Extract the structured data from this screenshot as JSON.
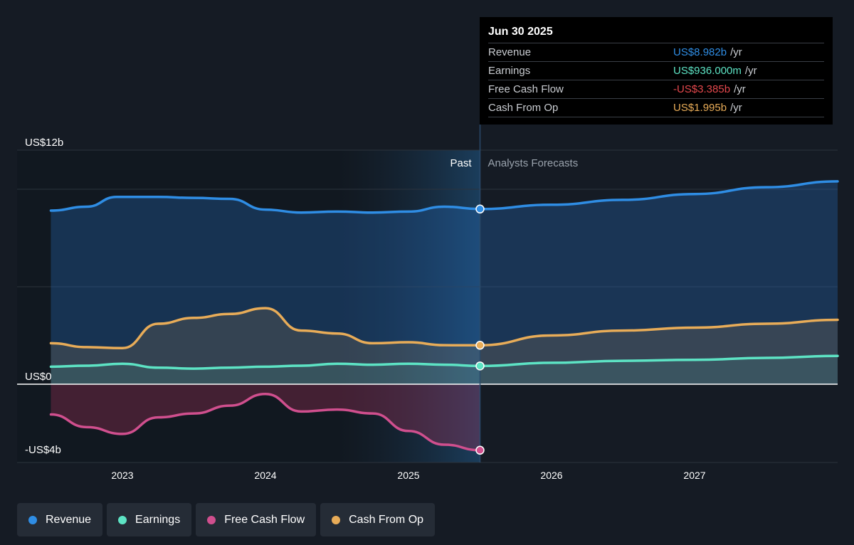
{
  "chart_data": {
    "type": "area",
    "y_axis": {
      "ticks": [
        {
          "value": 12,
          "label": "US$12b"
        },
        {
          "value": 0,
          "label": "US$0"
        },
        {
          "value": -4,
          "label": "-US$4b"
        }
      ],
      "range": [
        -4,
        12
      ],
      "unit": "billions USD"
    },
    "x_axis": {
      "ticks": [
        {
          "value": 2023,
          "label": "2023"
        },
        {
          "value": 2024,
          "label": "2024"
        },
        {
          "value": 2025,
          "label": "2025"
        },
        {
          "value": 2026,
          "label": "2026"
        },
        {
          "value": 2027,
          "label": "2027"
        }
      ]
    },
    "periods": {
      "past_label": "Past",
      "forecast_label": "Analysts Forecasts"
    },
    "series": [
      {
        "name": "Revenue",
        "key": "revenue",
        "color": "#2f8de4",
        "points": [
          [
            2022.5,
            8.9
          ],
          [
            2022.75,
            9.1
          ],
          [
            2022.96,
            9.6
          ],
          [
            2023.25,
            9.6
          ],
          [
            2023.5,
            9.55
          ],
          [
            2023.75,
            9.5
          ],
          [
            2024.0,
            8.95
          ],
          [
            2024.25,
            8.8
          ],
          [
            2024.5,
            8.85
          ],
          [
            2024.75,
            8.8
          ],
          [
            2025.0,
            8.85
          ],
          [
            2025.25,
            9.1
          ],
          [
            2025.5,
            8.98
          ]
        ],
        "forecast": [
          [
            2025.5,
            8.98
          ],
          [
            2026.0,
            9.2
          ],
          [
            2026.5,
            9.45
          ],
          [
            2027.0,
            9.75
          ],
          [
            2027.5,
            10.1
          ],
          [
            2028.0,
            10.4
          ]
        ]
      },
      {
        "name": "Earnings",
        "key": "earnings",
        "color": "#5de3c4",
        "points": [
          [
            2022.5,
            0.9
          ],
          [
            2022.75,
            0.95
          ],
          [
            2023.0,
            1.05
          ],
          [
            2023.25,
            0.85
          ],
          [
            2023.5,
            0.8
          ],
          [
            2023.75,
            0.85
          ],
          [
            2024.0,
            0.9
          ],
          [
            2024.25,
            0.95
          ],
          [
            2024.5,
            1.05
          ],
          [
            2024.75,
            1.0
          ],
          [
            2025.0,
            1.05
          ],
          [
            2025.25,
            1.0
          ],
          [
            2025.5,
            0.936
          ]
        ],
        "forecast": [
          [
            2025.5,
            0.936
          ],
          [
            2026.0,
            1.1
          ],
          [
            2026.5,
            1.2
          ],
          [
            2027.0,
            1.25
          ],
          [
            2027.5,
            1.35
          ],
          [
            2028.0,
            1.45
          ]
        ]
      },
      {
        "name": "Free Cash Flow",
        "key": "fcf",
        "color": "#d04f8e",
        "points": [
          [
            2022.5,
            -1.55
          ],
          [
            2022.75,
            -2.2
          ],
          [
            2023.0,
            -2.55
          ],
          [
            2023.25,
            -1.7
          ],
          [
            2023.5,
            -1.5
          ],
          [
            2023.75,
            -1.1
          ],
          [
            2024.0,
            -0.5
          ],
          [
            2024.25,
            -1.4
          ],
          [
            2024.5,
            -1.3
          ],
          [
            2024.75,
            -1.5
          ],
          [
            2025.0,
            -2.4
          ],
          [
            2025.25,
            -3.1
          ],
          [
            2025.5,
            -3.385
          ]
        ],
        "forecast": []
      },
      {
        "name": "Cash From Op",
        "key": "cfo",
        "color": "#e8ac58",
        "points": [
          [
            2022.5,
            2.1
          ],
          [
            2022.75,
            1.9
          ],
          [
            2023.0,
            1.85
          ],
          [
            2023.25,
            3.1
          ],
          [
            2023.5,
            3.4
          ],
          [
            2023.75,
            3.6
          ],
          [
            2024.0,
            3.9
          ],
          [
            2024.25,
            2.75
          ],
          [
            2024.5,
            2.6
          ],
          [
            2024.75,
            2.1
          ],
          [
            2025.0,
            2.15
          ],
          [
            2025.25,
            2.0
          ],
          [
            2025.5,
            1.995
          ]
        ],
        "forecast": [
          [
            2025.5,
            1.995
          ],
          [
            2026.0,
            2.5
          ],
          [
            2026.5,
            2.75
          ],
          [
            2027.0,
            2.9
          ],
          [
            2027.5,
            3.1
          ],
          [
            2028.0,
            3.3
          ]
        ]
      }
    ],
    "highlight_x": 2025.5,
    "tooltip": {
      "date": "Jun 30 2025",
      "rows": [
        {
          "name": "Revenue",
          "value": "US$8.982b",
          "unit": "/yr",
          "color": "#2f8de4"
        },
        {
          "name": "Earnings",
          "value": "US$936.000m",
          "unit": "/yr",
          "color": "#5de3c4"
        },
        {
          "name": "Free Cash Flow",
          "value": "-US$3.385b",
          "unit": "/yr",
          "color": "#e5484d"
        },
        {
          "name": "Cash From Op",
          "value": "US$1.995b",
          "unit": "/yr",
          "color": "#e8ac58"
        }
      ]
    },
    "legend": [
      {
        "name": "Revenue",
        "color": "#2f8de4"
      },
      {
        "name": "Earnings",
        "color": "#5de3c4"
      },
      {
        "name": "Free Cash Flow",
        "color": "#d04f8e"
      },
      {
        "name": "Cash From Op",
        "color": "#e8ac58"
      }
    ]
  }
}
